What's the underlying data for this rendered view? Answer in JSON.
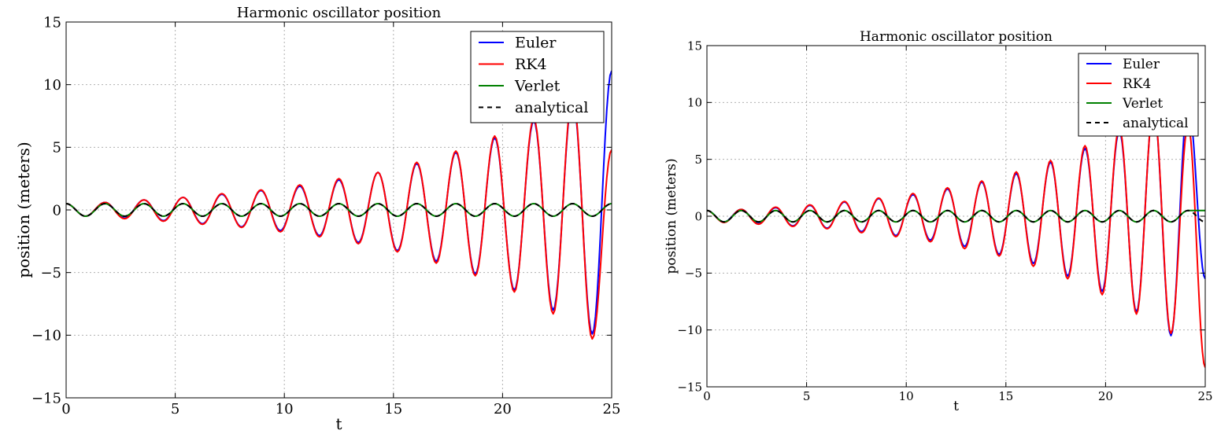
{
  "colors": {
    "euler": "#0000ff",
    "rk4": "#ff0000",
    "verlet": "#008000",
    "analytical": "#000000",
    "grid": "#b0b0b0",
    "background": "#ffffff"
  },
  "chart_data": [
    {
      "type": "line",
      "title": "Harmonic oscillator position",
      "xlabel": "t",
      "ylabel": "position (meters)",
      "xlim": [
        0,
        25
      ],
      "ylim": [
        -15,
        15
      ],
      "xticks": [
        0,
        5,
        10,
        15,
        20,
        25
      ],
      "xtick_labels": [
        "0",
        "5",
        "10",
        "15",
        "20",
        "25"
      ],
      "yticks": [
        -15,
        -10,
        -5,
        0,
        5,
        10,
        15
      ],
      "ytick_labels": [
        "−15",
        "−10",
        "−5",
        "0",
        "5",
        "10",
        "15"
      ],
      "grid": true,
      "legend": "top-right",
      "t": [
        0.0,
        0.89,
        1.78,
        2.68,
        3.57,
        4.46,
        5.36,
        6.25,
        7.14,
        8.04,
        8.93,
        9.82,
        10.71,
        11.61,
        12.5,
        13.39,
        14.29,
        15.18,
        16.07,
        16.96,
        17.86,
        18.75,
        19.64,
        20.54,
        21.43,
        22.32,
        23.21,
        24.11,
        25.0
      ],
      "series": [
        {
          "name": "Euler",
          "style": "solid",
          "color": "#0000ff",
          "y": [
            0.5,
            -0.5,
            0.6,
            -0.65,
            0.8,
            -0.85,
            1.0,
            -1.1,
            1.25,
            -1.35,
            1.55,
            -1.65,
            1.9,
            -2.05,
            2.4,
            -2.6,
            3.0,
            -3.25,
            3.7,
            -4.1,
            4.6,
            -5.1,
            5.75,
            -6.4,
            7.1,
            -8.0,
            8.9,
            -9.9,
            11.1
          ]
        },
        {
          "name": "RK4",
          "style": "solid",
          "color": "#ff0000",
          "y": [
            0.5,
            -0.5,
            0.6,
            -0.7,
            0.8,
            -0.9,
            1.0,
            -1.15,
            1.3,
            -1.4,
            1.6,
            -1.75,
            2.0,
            -2.15,
            2.5,
            -2.7,
            3.0,
            -3.35,
            3.8,
            -4.25,
            4.7,
            -5.25,
            5.9,
            -6.55,
            7.3,
            -8.3,
            9.2,
            -10.3,
            4.8
          ]
        },
        {
          "name": "Verlet",
          "style": "solid",
          "color": "#008000",
          "y": [
            0.5,
            -0.5,
            0.5,
            -0.5,
            0.5,
            -0.5,
            0.5,
            -0.5,
            0.5,
            -0.5,
            0.5,
            -0.5,
            0.5,
            -0.5,
            0.5,
            -0.5,
            0.5,
            -0.5,
            0.5,
            -0.5,
            0.5,
            -0.5,
            0.5,
            -0.5,
            0.5,
            -0.5,
            0.5,
            -0.5,
            0.5
          ]
        },
        {
          "name": "analytical",
          "style": "dashed",
          "color": "#000000",
          "y": [
            0.5,
            -0.5,
            0.5,
            -0.5,
            0.5,
            -0.5,
            0.5,
            -0.5,
            0.5,
            -0.5,
            0.5,
            -0.5,
            0.5,
            -0.5,
            0.5,
            -0.5,
            0.5,
            -0.5,
            0.5,
            -0.5,
            0.5,
            -0.5,
            0.5,
            -0.5,
            0.5,
            -0.5,
            0.5,
            -0.5,
            0.5
          ]
        }
      ]
    },
    {
      "type": "line",
      "title": "Harmonic oscillator position",
      "xlabel": "t",
      "ylabel": "position (meters)",
      "xlim": [
        0,
        25
      ],
      "ylim": [
        -15,
        15
      ],
      "xticks": [
        0,
        5,
        10,
        15,
        20,
        25
      ],
      "xtick_labels": [
        "0",
        "5",
        "10",
        "15",
        "20",
        "25"
      ],
      "yticks": [
        -15,
        -10,
        -5,
        0,
        5,
        10,
        15
      ],
      "ytick_labels": [
        "−15",
        "−10",
        "−5",
        "0",
        "5",
        "10",
        "15"
      ],
      "grid": true,
      "legend": "top-right",
      "t": [
        0.0,
        0.86,
        1.72,
        2.59,
        3.45,
        4.31,
        5.17,
        6.03,
        6.9,
        7.76,
        8.62,
        9.48,
        10.34,
        11.21,
        12.07,
        12.93,
        13.79,
        14.66,
        15.52,
        16.38,
        17.24,
        18.1,
        18.97,
        19.83,
        20.69,
        21.55,
        22.41,
        23.28,
        24.14,
        25.0
      ],
      "series": [
        {
          "name": "Euler",
          "style": "solid",
          "color": "#0000ff",
          "y": [
            0.5,
            -0.5,
            0.6,
            -0.65,
            0.75,
            -0.85,
            0.95,
            -1.05,
            1.25,
            -1.35,
            1.55,
            -1.7,
            1.9,
            -2.1,
            2.4,
            -2.65,
            3.0,
            -3.35,
            3.75,
            -4.15,
            4.75,
            -5.25,
            5.95,
            -6.6,
            7.5,
            -8.4,
            9.5,
            -10.5,
            10.0,
            -5.5
          ]
        },
        {
          "name": "RK4",
          "style": "solid",
          "color": "#ff0000",
          "y": [
            0.5,
            -0.55,
            0.6,
            -0.7,
            0.8,
            -0.9,
            1.0,
            -1.1,
            1.3,
            -1.45,
            1.6,
            -1.8,
            2.0,
            -2.25,
            2.5,
            -2.85,
            3.1,
            -3.5,
            3.9,
            -4.4,
            4.9,
            -5.5,
            6.2,
            -6.9,
            7.8,
            -8.6,
            9.6,
            -10.3,
            8.0,
            -13.3
          ]
        },
        {
          "name": "Verlet",
          "style": "solid",
          "color": "#008000",
          "y": [
            0.5,
            -0.5,
            0.5,
            -0.5,
            0.5,
            -0.5,
            0.5,
            -0.5,
            0.5,
            -0.5,
            0.5,
            -0.5,
            0.5,
            -0.5,
            0.5,
            -0.5,
            0.5,
            -0.5,
            0.5,
            -0.5,
            0.5,
            -0.5,
            0.5,
            -0.5,
            0.5,
            -0.5,
            0.5,
            -0.5,
            0.5,
            0.5
          ]
        },
        {
          "name": "analytical",
          "style": "dashed",
          "color": "#000000",
          "y": [
            0.5,
            -0.5,
            0.5,
            -0.5,
            0.5,
            -0.5,
            0.5,
            -0.5,
            0.5,
            -0.5,
            0.5,
            -0.5,
            0.5,
            -0.5,
            0.5,
            -0.5,
            0.5,
            -0.5,
            0.5,
            -0.5,
            0.5,
            -0.5,
            0.5,
            -0.5,
            0.5,
            -0.5,
            0.5,
            -0.5,
            0.5,
            -0.5
          ]
        }
      ]
    }
  ]
}
